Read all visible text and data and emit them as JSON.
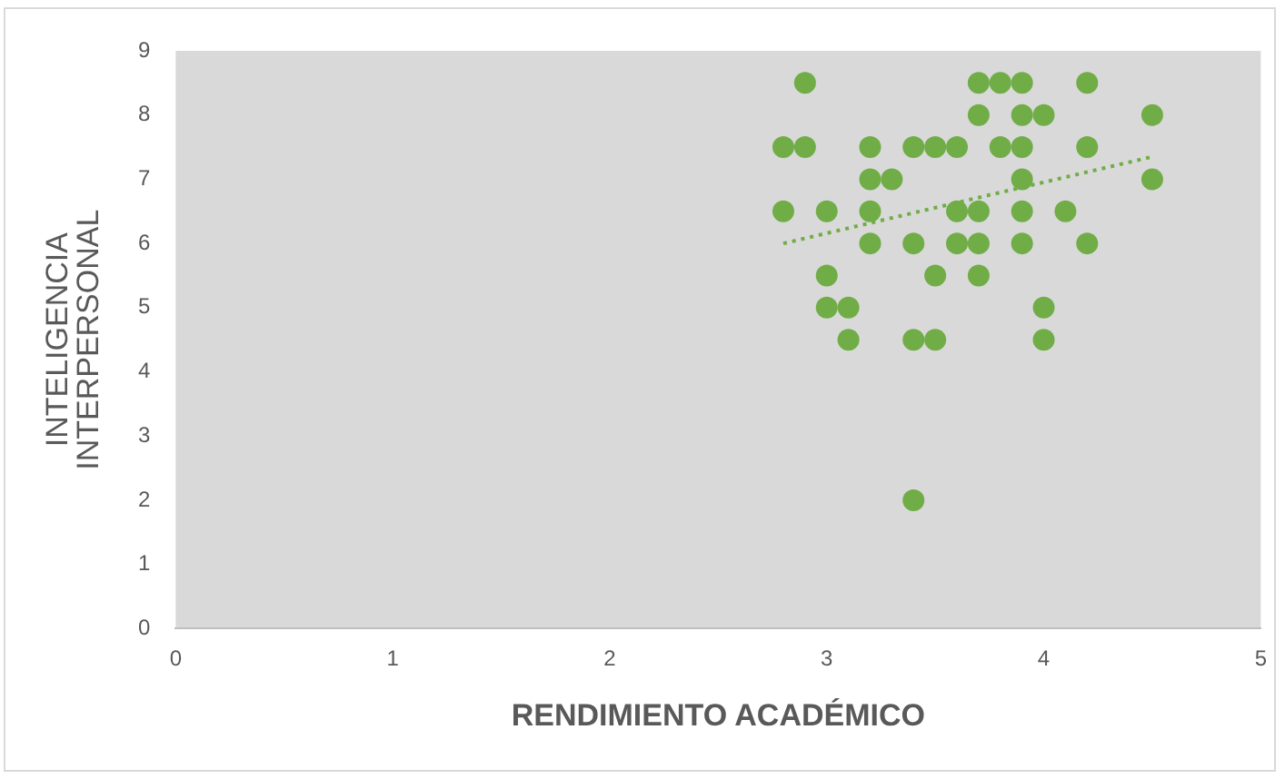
{
  "chart_data": {
    "type": "scatter",
    "xlabel": "RENDIMIENTO ACADÉMICO",
    "ylabel": "INTELIGENCIA\nINTERPERSONAL",
    "xlim": [
      0,
      5
    ],
    "xticks": [
      0,
      1,
      2,
      3,
      4,
      5
    ],
    "ylim": [
      0,
      9
    ],
    "yticks": [
      0,
      1,
      2,
      3,
      4,
      5,
      6,
      7,
      8,
      9
    ],
    "grid": false,
    "legend": false,
    "marker": "circle",
    "series": [
      {
        "color": "#70ad47",
        "x": [
          2.9,
          3.7,
          3.8,
          3.9,
          4.2,
          3.7,
          3.9,
          4.0,
          4.5,
          2.8,
          2.9,
          3.2,
          3.4,
          3.5,
          3.6,
          3.8,
          3.9,
          4.2,
          3.2,
          3.3,
          3.9,
          4.5,
          2.8,
          3.0,
          3.2,
          3.6,
          3.7,
          3.9,
          4.1,
          3.2,
          3.4,
          3.6,
          3.7,
          3.9,
          4.2,
          3.0,
          3.5,
          3.7,
          3.0,
          3.1,
          4.0,
          3.1,
          3.4,
          3.5,
          4.0,
          3.4
        ],
        "values": [
          8.5,
          8.5,
          8.5,
          8.5,
          8.5,
          8,
          8,
          8,
          8,
          7.5,
          7.5,
          7.5,
          7.5,
          7.5,
          7.5,
          7.5,
          7.5,
          7.5,
          7,
          7,
          7,
          7,
          6.5,
          6.5,
          6.5,
          6.5,
          6.5,
          6.5,
          6.5,
          6,
          6,
          6,
          6,
          6,
          6,
          5.5,
          5.5,
          5.5,
          5,
          5,
          5,
          4.5,
          4.5,
          4.5,
          4.5,
          2
        ]
      },
      {
        "type": "line",
        "color": "#70ad47",
        "line_style": "dotted",
        "marker": "none",
        "x": [
          2.8,
          4.5
        ],
        "values": [
          6.0,
          7.35
        ]
      }
    ]
  }
}
